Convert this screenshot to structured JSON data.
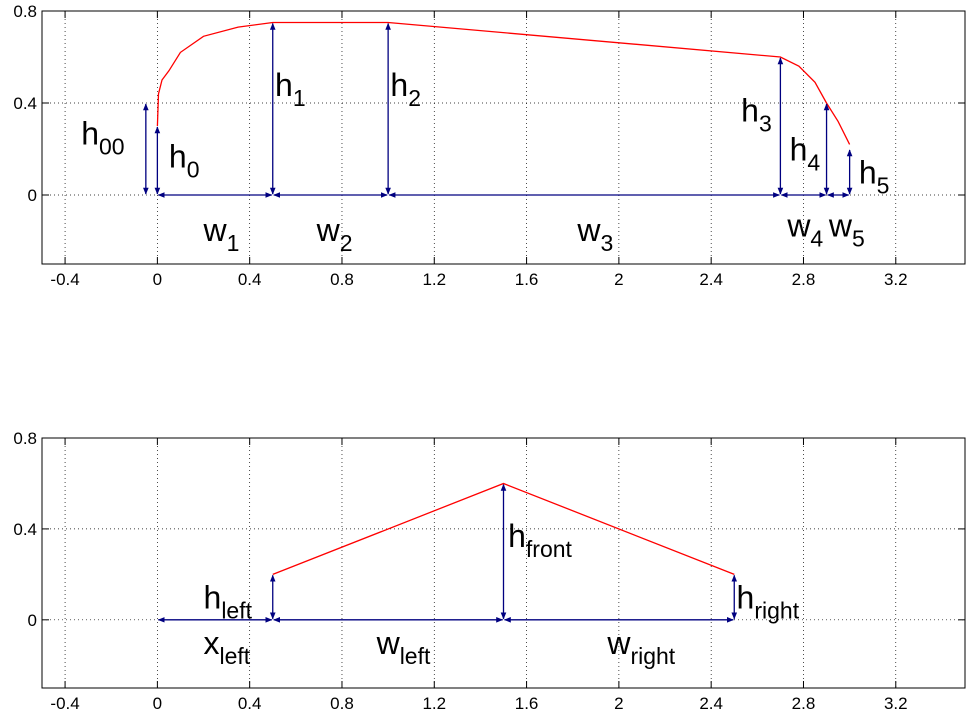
{
  "chart_data": [
    {
      "type": "line",
      "title": "",
      "xlabel": "",
      "ylabel": "",
      "xlim": [
        -0.5,
        3.5
      ],
      "ylim": [
        -0.3,
        0.8
      ],
      "grid": true,
      "xticks": [
        -0.4,
        0,
        0.4,
        0.8,
        1.2,
        1.6,
        2,
        2.4,
        2.8,
        3.2
      ],
      "xtick_labels": [
        "-0.4",
        "0",
        "0.4",
        "0.8",
        "1.2",
        "1.6",
        "2",
        "2.4",
        "2.8",
        "3.2"
      ],
      "yticks": [
        0,
        0.4,
        0.8
      ],
      "ytick_labels": [
        "0",
        "0.4",
        "0.8"
      ],
      "series": [
        {
          "color": "#ff0000",
          "x": [
            0,
            0.005,
            0.02,
            0.05,
            0.1,
            0.2,
            0.35,
            0.5,
            1.0,
            2.7,
            2.78,
            2.85,
            2.9,
            2.95,
            3.0
          ],
          "y": [
            0.3,
            0.44,
            0.5,
            0.54,
            0.62,
            0.69,
            0.73,
            0.75,
            0.75,
            0.6,
            0.56,
            0.49,
            0.4,
            0.32,
            0.22
          ]
        }
      ],
      "vertical_dimensions": [
        {
          "x": -0.05,
          "y0": 0,
          "y1": 0.4,
          "main": "h",
          "sub": "00",
          "label_x": -0.33,
          "label_y": 0.22
        },
        {
          "x": 0,
          "y0": 0,
          "y1": 0.3,
          "main": "h",
          "sub": "0",
          "label_x": 0.05,
          "label_y": 0.12
        },
        {
          "x": 0.5,
          "y0": 0,
          "y1": 0.75,
          "main": "h",
          "sub": "1",
          "label_x": 0.51,
          "label_y": 0.43
        },
        {
          "x": 1.0,
          "y0": 0,
          "y1": 0.75,
          "main": "h",
          "sub": "2",
          "label_x": 1.01,
          "label_y": 0.43
        },
        {
          "x": 2.7,
          "y0": 0,
          "y1": 0.6,
          "main": "h",
          "sub": "3",
          "label_x": 2.53,
          "label_y": 0.32
        },
        {
          "x": 2.9,
          "y0": 0,
          "y1": 0.4,
          "main": "h",
          "sub": "4",
          "label_x": 2.74,
          "label_y": 0.15
        },
        {
          "x": 3.0,
          "y0": 0,
          "y1": 0.2,
          "main": "h",
          "sub": "5",
          "label_x": 3.04,
          "label_y": 0.05
        }
      ],
      "horizontal_dimensions": [
        {
          "y": 0,
          "x0": 0,
          "x1": 0.5,
          "main": "w",
          "sub": "1",
          "label_x": 0.2,
          "label_y": -0.2
        },
        {
          "y": 0,
          "x0": 0.5,
          "x1": 1.0,
          "main": "w",
          "sub": "2",
          "label_x": 0.69,
          "label_y": -0.2
        },
        {
          "y": 0,
          "x0": 1.0,
          "x1": 2.7,
          "main": "w",
          "sub": "3",
          "label_x": 1.82,
          "label_y": -0.2
        },
        {
          "y": 0,
          "x0": 2.7,
          "x1": 2.9,
          "main": "w",
          "sub": "4",
          "label_x": 2.73,
          "label_y": -0.18
        },
        {
          "y": 0,
          "x0": 2.9,
          "x1": 3.0,
          "main": "w",
          "sub": "5",
          "label_x": 2.91,
          "label_y": -0.18
        }
      ]
    },
    {
      "type": "line",
      "title": "",
      "xlabel": "",
      "ylabel": "",
      "xlim": [
        -0.5,
        3.5
      ],
      "ylim": [
        -0.3,
        0.8
      ],
      "grid": true,
      "xticks": [
        -0.4,
        0,
        0.4,
        0.8,
        1.2,
        1.6,
        2,
        2.4,
        2.8,
        3.2
      ],
      "xtick_labels": [
        "-0.4",
        "0",
        "0.4",
        "0.8",
        "1.2",
        "1.6",
        "2",
        "2.4",
        "2.8",
        "3.2"
      ],
      "yticks": [
        0,
        0.4,
        0.8
      ],
      "ytick_labels": [
        "0",
        "0.4",
        "0.8"
      ],
      "series": [
        {
          "color": "#ff0000",
          "x": [
            0.5,
            1.5,
            2.5
          ],
          "y": [
            0.2,
            0.6,
            0.2
          ]
        }
      ],
      "vertical_dimensions": [
        {
          "x": 0.5,
          "y0": 0,
          "y1": 0.2,
          "main": "h",
          "sub": "left",
          "label_x": 0.2,
          "label_y": 0.05
        },
        {
          "x": 1.5,
          "y0": 0,
          "y1": 0.6,
          "main": "h",
          "sub": "front",
          "label_x": 1.52,
          "label_y": 0.32
        },
        {
          "x": 2.5,
          "y0": 0,
          "y1": 0.2,
          "main": "h",
          "sub": "right",
          "label_x": 2.51,
          "label_y": 0.05
        }
      ],
      "horizontal_dimensions": [
        {
          "y": 0,
          "x0": 0,
          "x1": 0.5,
          "main": "x",
          "sub": "left",
          "label_x": 0.2,
          "label_y": -0.15
        },
        {
          "y": 0,
          "x0": 0.5,
          "x1": 1.5,
          "main": "w",
          "sub": "left",
          "label_x": 0.95,
          "label_y": -0.15
        },
        {
          "y": 0,
          "x0": 1.5,
          "x1": 2.5,
          "main": "w",
          "sub": "right",
          "label_x": 1.95,
          "label_y": -0.15
        }
      ]
    }
  ]
}
